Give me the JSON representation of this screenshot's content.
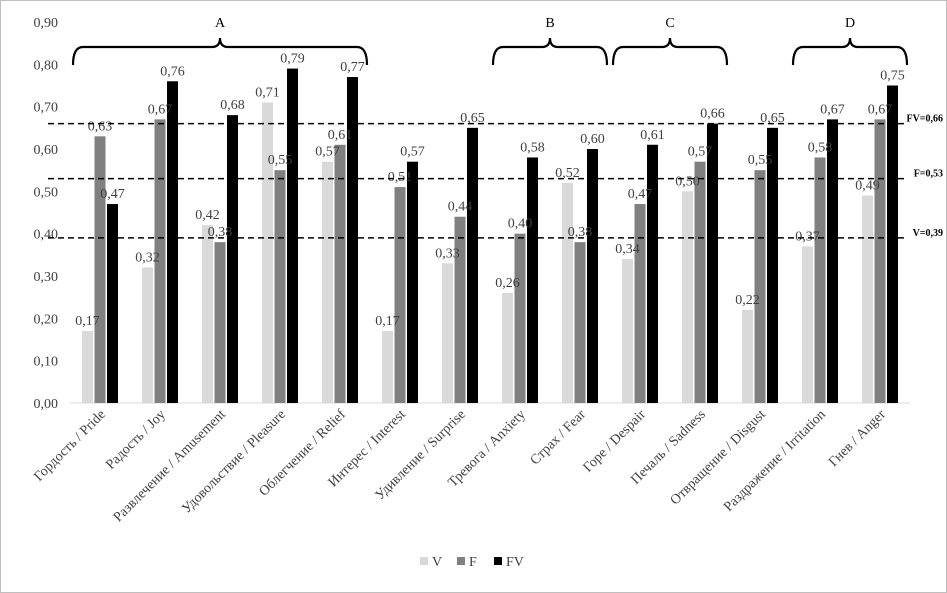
{
  "chart_data": {
    "type": "bar",
    "title": "",
    "xlabel": "",
    "ylabel": "",
    "ylim": [
      0,
      0.9
    ],
    "yticks": [
      "0,00",
      "0,10",
      "0,20",
      "0,30",
      "0,40",
      "0,50",
      "0,60",
      "0,70",
      "0,80",
      "0,90"
    ],
    "categories": [
      "Гордость / Pride",
      "Радость / Joy",
      "Развлечение / Amusement",
      "Удовольствие / Pleasure",
      "Облегчение / Relief",
      "Интерес / Interest",
      "Удивление / Surprise",
      "Тревога / Anxiety",
      "Страх / Fear",
      "Горе / Despair",
      "Печаль / Sadness",
      "Отвращение / Disgust",
      "Раздражение / Irritation",
      "Гнев / Anger"
    ],
    "series": [
      {
        "name": "V",
        "color": "#d9d9d9",
        "values": [
          0.17,
          0.32,
          0.42,
          0.71,
          0.57,
          0.17,
          0.33,
          0.26,
          0.52,
          0.34,
          0.5,
          0.22,
          0.37,
          0.49
        ],
        "labels": [
          "0,17",
          "0,32",
          "0,42",
          "0,71",
          "0,57",
          "0,17",
          "0,33",
          "0,26",
          "0,52",
          "0,34",
          "0,50",
          "0,22",
          "0,37",
          "0,49"
        ]
      },
      {
        "name": "F",
        "color": "#808080",
        "values": [
          0.63,
          0.67,
          0.38,
          0.55,
          0.61,
          0.51,
          0.44,
          0.4,
          0.38,
          0.47,
          0.57,
          0.55,
          0.58,
          0.67
        ],
        "labels": [
          "0,63",
          "0,67",
          "0,38",
          "0,55",
          "0,61",
          "0,51",
          "0,44",
          "0,40",
          "0,38",
          "0,47",
          "0,57",
          "0,55",
          "0,58",
          "0,67"
        ]
      },
      {
        "name": "FV",
        "color": "#000000",
        "values": [
          0.47,
          0.76,
          0.68,
          0.79,
          0.77,
          0.57,
          0.65,
          0.58,
          0.6,
          0.61,
          0.66,
          0.65,
          0.67,
          0.75
        ],
        "labels": [
          "0,47",
          "0,76",
          "0,68",
          "0,79",
          "0,77",
          "0,57",
          "0,65",
          "0,58",
          "0,60",
          "0,61",
          "0,66",
          "0,65",
          "0,67",
          "0,75"
        ]
      }
    ],
    "thresholds": [
      {
        "label": "FV=0,66",
        "value": 0.66
      },
      {
        "label": "F=0,53",
        "value": 0.53
      },
      {
        "label": "V=0,39",
        "value": 0.39
      }
    ],
    "groups": [
      {
        "label": "A",
        "from": 0,
        "to": 4
      },
      {
        "label": "B",
        "from": 7,
        "to": 8
      },
      {
        "label": "C",
        "from": 9,
        "to": 10
      },
      {
        "label": "D",
        "from": 12,
        "to": 13
      }
    ],
    "legend_position": "bottom"
  }
}
